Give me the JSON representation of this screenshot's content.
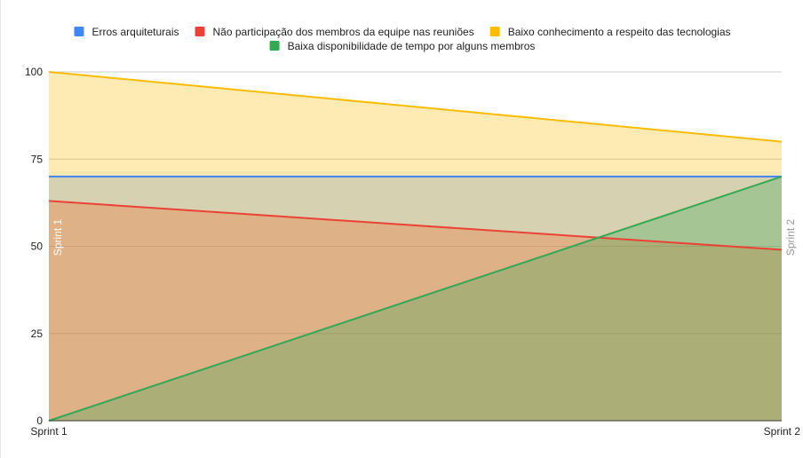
{
  "chart_data": {
    "type": "area",
    "categories": [
      "Sprint 1",
      "Sprint 2"
    ],
    "series": [
      {
        "name": "Erros arquiteturais",
        "values": [
          70,
          70
        ],
        "color": "#4285f4"
      },
      {
        "name": "Não participação dos membros da equipe nas reuniões",
        "values": [
          63,
          49
        ],
        "color": "#ea4335"
      },
      {
        "name": "Baixo conhecimento a respeito das tecnologias",
        "values": [
          100,
          80
        ],
        "color": "#fbbc04"
      },
      {
        "name": "Baixa disponibilidade de tempo por alguns membros",
        "values": [
          0,
          70
        ],
        "color": "#34a853"
      }
    ],
    "ylim": [
      0,
      100
    ],
    "yticks": [
      0,
      25,
      50,
      75,
      100
    ],
    "grid": true,
    "legend_position": "top",
    "annotations": [
      "Sprint 1",
      "Sprint 2"
    ]
  }
}
